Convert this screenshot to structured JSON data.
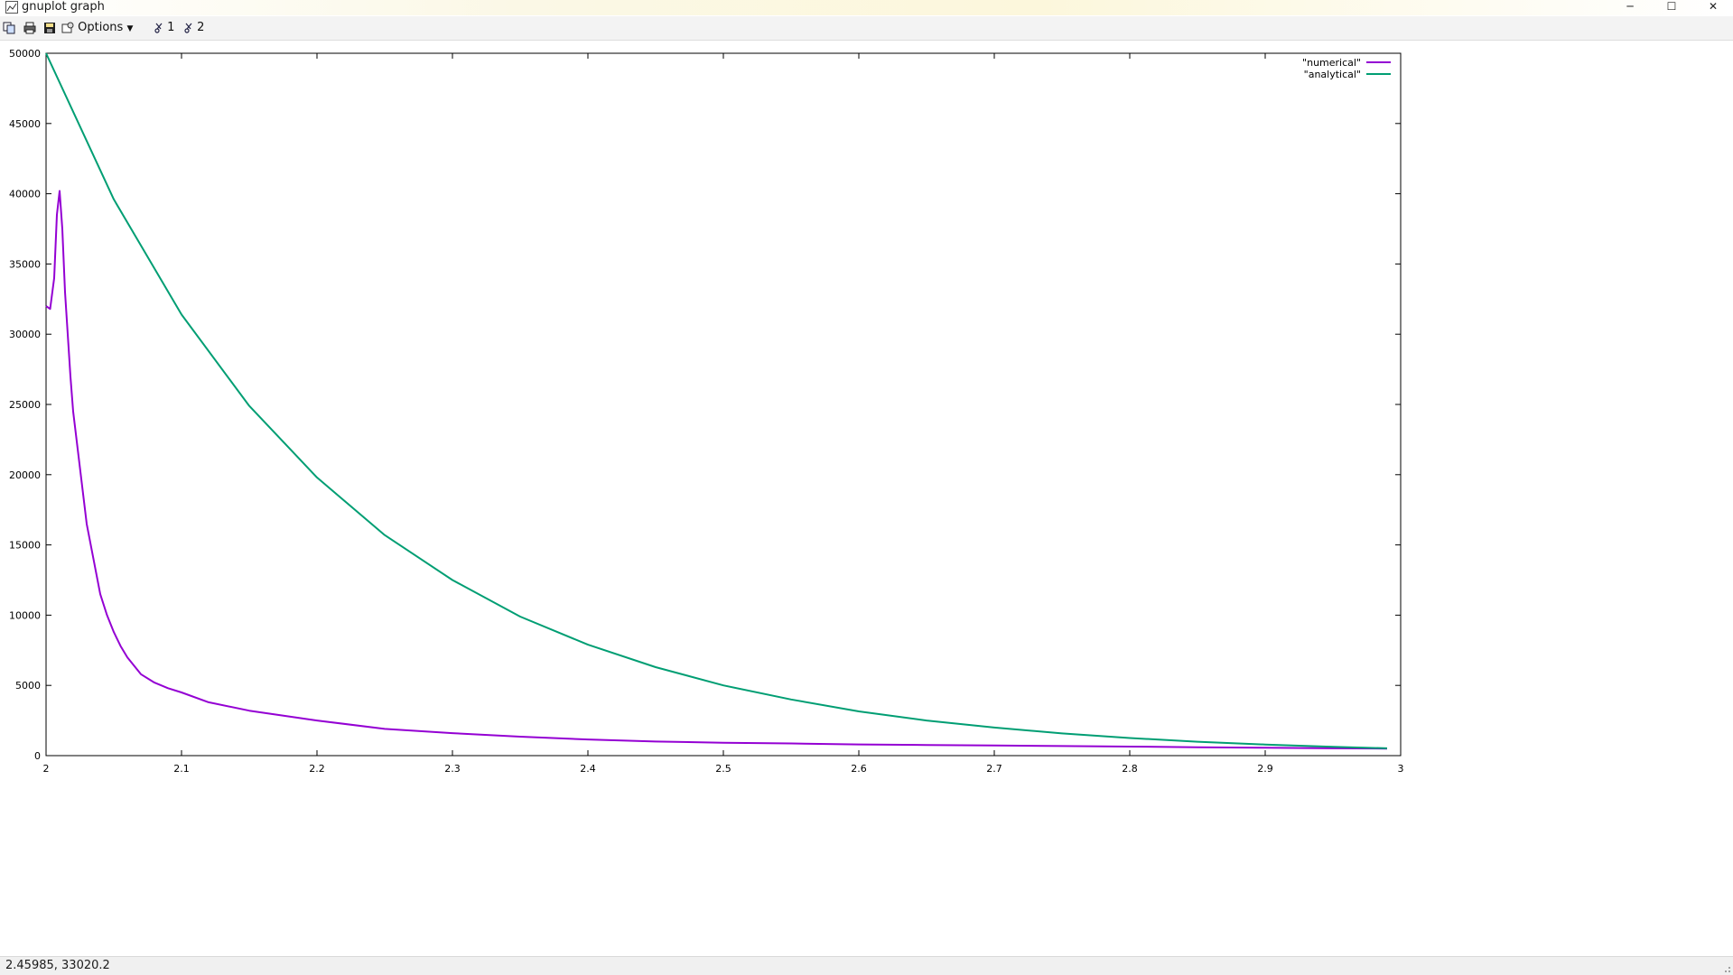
{
  "window": {
    "title": "gnuplot graph",
    "controls": {
      "minimize": "─",
      "maximize": "☐",
      "close": "✕"
    }
  },
  "toolbar": {
    "copy_icon": "copy-icon",
    "print_icon": "print-icon",
    "save_icon": "save-icon",
    "options_label": "Options",
    "plot_toggles": [
      "1",
      "2"
    ]
  },
  "status": {
    "coords": "2.45985,  33020.2"
  },
  "colors": {
    "numerical": "#9400d3",
    "analytical": "#009e73",
    "axis": "#000000"
  },
  "chart_data": {
    "type": "line",
    "title": "",
    "xlabel": "",
    "ylabel": "",
    "xlim": [
      2,
      3
    ],
    "ylim": [
      0,
      50000
    ],
    "x_ticks": [
      "2",
      "2.1",
      "2.2",
      "2.3",
      "2.4",
      "2.5",
      "2.6",
      "2.7",
      "2.8",
      "2.9",
      "3"
    ],
    "y_ticks": [
      "0",
      "5000",
      "10000",
      "15000",
      "20000",
      "25000",
      "30000",
      "35000",
      "40000",
      "45000",
      "50000"
    ],
    "grid": false,
    "legend_position": "top-right",
    "series": [
      {
        "name": "\"numerical\"",
        "x": [
          2.0,
          2.003,
          2.006,
          2.008,
          2.01,
          2.012,
          2.014,
          2.016,
          2.018,
          2.02,
          2.025,
          2.03,
          2.035,
          2.04,
          2.045,
          2.05,
          2.055,
          2.06,
          2.07,
          2.08,
          2.09,
          2.1,
          2.12,
          2.15,
          2.2,
          2.25,
          2.3,
          2.35,
          2.4,
          2.45,
          2.5,
          2.55,
          2.6,
          2.65,
          2.7,
          2.75,
          2.8,
          2.85,
          2.9,
          2.95,
          2.99
        ],
        "y": [
          32000,
          31800,
          34000,
          38500,
          40200,
          37500,
          33000,
          30000,
          27000,
          24500,
          20500,
          16500,
          14000,
          11500,
          10000,
          8800,
          7800,
          7000,
          5800,
          5200,
          4800,
          4500,
          3800,
          3200,
          2500,
          1900,
          1600,
          1350,
          1150,
          1000,
          920,
          870,
          800,
          760,
          720,
          680,
          640,
          600,
          560,
          520,
          500
        ]
      },
      {
        "name": "\"analytical\"",
        "x": [
          2.0,
          2.05,
          2.1,
          2.15,
          2.2,
          2.25,
          2.3,
          2.35,
          2.4,
          2.45,
          2.5,
          2.55,
          2.6,
          2.65,
          2.7,
          2.75,
          2.8,
          2.85,
          2.9,
          2.95,
          2.99
        ],
        "y": [
          50000,
          39600,
          31400,
          24900,
          19800,
          15700,
          12500,
          9900,
          7900,
          6300,
          5000,
          4000,
          3150,
          2500,
          2000,
          1580,
          1250,
          990,
          790,
          630,
          520
        ]
      }
    ]
  }
}
